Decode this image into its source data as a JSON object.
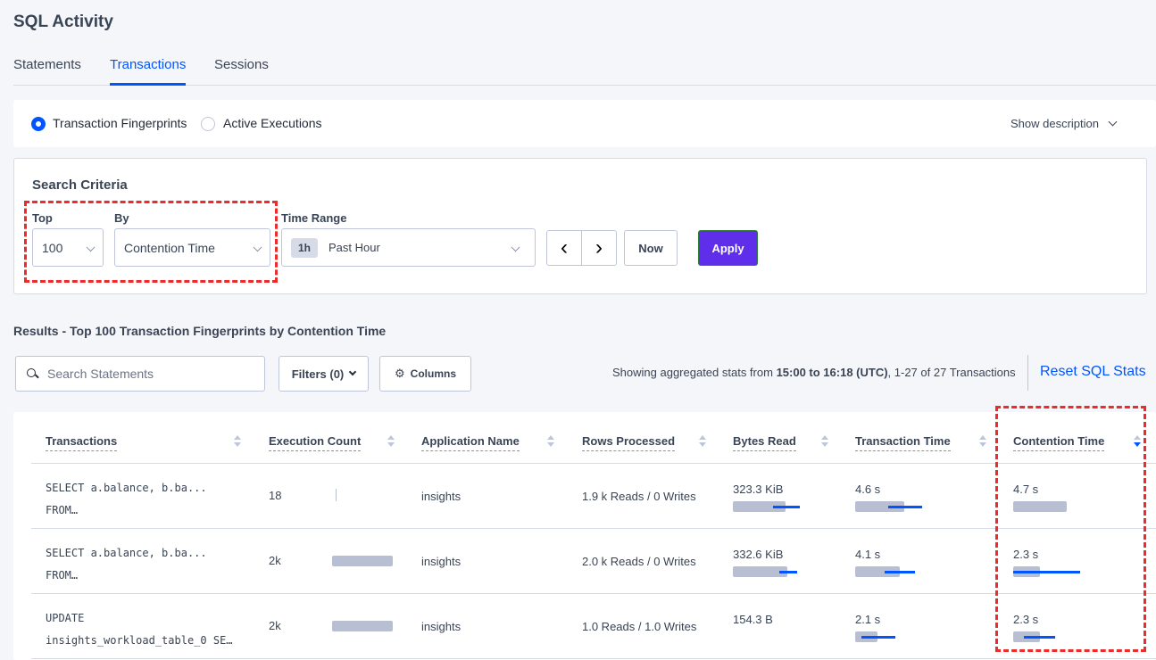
{
  "page": {
    "title": "SQL Activity"
  },
  "tabs": [
    {
      "label": "Statements"
    },
    {
      "label": "Transactions",
      "active": true
    },
    {
      "label": "Sessions"
    }
  ],
  "view": {
    "options": [
      {
        "label": "Transaction Fingerprints",
        "selected": true
      },
      {
        "label": "Active Executions",
        "selected": false
      }
    ],
    "show_description": "Show description"
  },
  "search": {
    "title": "Search Criteria",
    "top_label": "Top",
    "top_value": "100",
    "by_label": "By",
    "by_value": "Contention Time",
    "time_label": "Time Range",
    "time_badge": "1h",
    "time_value": "Past Hour",
    "prev": "‹",
    "next": "›",
    "now": "Now",
    "apply": "Apply"
  },
  "results": {
    "title": "Results - Top 100 Transaction Fingerprints by Contention Time",
    "search_placeholder": "Search Statements",
    "filters": "Filters (0)",
    "columns": "Columns",
    "summary_prefix": "Showing aggregated stats from ",
    "summary_bold": "15:00 to 16:18 (UTC)",
    "summary_suffix": ", 1-27 of 27 Transactions",
    "reset": "Reset SQL Stats"
  },
  "colors": {
    "accent": "#0055ff",
    "apply": "#5f2eea",
    "annotation": "#ee2b2b",
    "bar_mean": "#b8bfd3"
  },
  "table": {
    "headers": [
      "Transactions",
      "Execution Count",
      "Application Name",
      "Rows Processed",
      "Bytes Read",
      "Transaction Time",
      "Contention Time"
    ],
    "sorted_column": "Contention Time",
    "sort_direction": "descending",
    "rows": [
      {
        "txn": [
          "SELECT a.balance, b.ba...",
          "FROM…"
        ],
        "exec": "18",
        "exec_bar": {
          "mean": 0.05
        },
        "app": "insights",
        "rows": "1.9 k Reads / 0 Writes",
        "bytes": "323.3 KiB",
        "bytes_bar": {
          "mean": 0.79,
          "sd": [
            0.6,
            1.0
          ]
        },
        "ttime": "4.6 s",
        "ttime_bar": {
          "mean": 0.73,
          "sd": [
            0.49,
            1.0
          ]
        },
        "ctime": "4.7 s",
        "ctime_bar": {
          "mean": 0.8
        }
      },
      {
        "txn": [
          "SELECT a.balance, b.ba...",
          "FROM…"
        ],
        "exec": "2k",
        "exec_bar": {
          "mean": 0.91
        },
        "app": "insights",
        "rows": "2.0 k Reads / 0 Writes",
        "bytes": "332.6 KiB",
        "bytes_bar": {
          "mean": 0.81,
          "sd": [
            0.69,
            0.95
          ]
        },
        "ttime": "4.1 s",
        "ttime_bar": {
          "mean": 0.67,
          "sd": [
            0.44,
            0.89
          ]
        },
        "ctime": "2.3 s",
        "ctime_bar": {
          "mean": 0.4,
          "sd": [
            0.0,
            1.0
          ]
        }
      },
      {
        "txn": [
          "UPDATE",
          "insights_workload_table_0 SE…"
        ],
        "exec": "2k",
        "exec_bar": {
          "mean": 0.91
        },
        "app": "insights",
        "rows": "1.0 Reads / 1.0 Writes",
        "bytes": "154.3 B",
        "ttime": "2.1 s",
        "ttime_bar": {
          "mean": 0.33,
          "sd": [
            0.09,
            0.59
          ]
        },
        "ctime": "2.3 s",
        "ctime_bar": {
          "mean": 0.4,
          "sd": [
            0.16,
            0.63
          ]
        }
      }
    ]
  }
}
